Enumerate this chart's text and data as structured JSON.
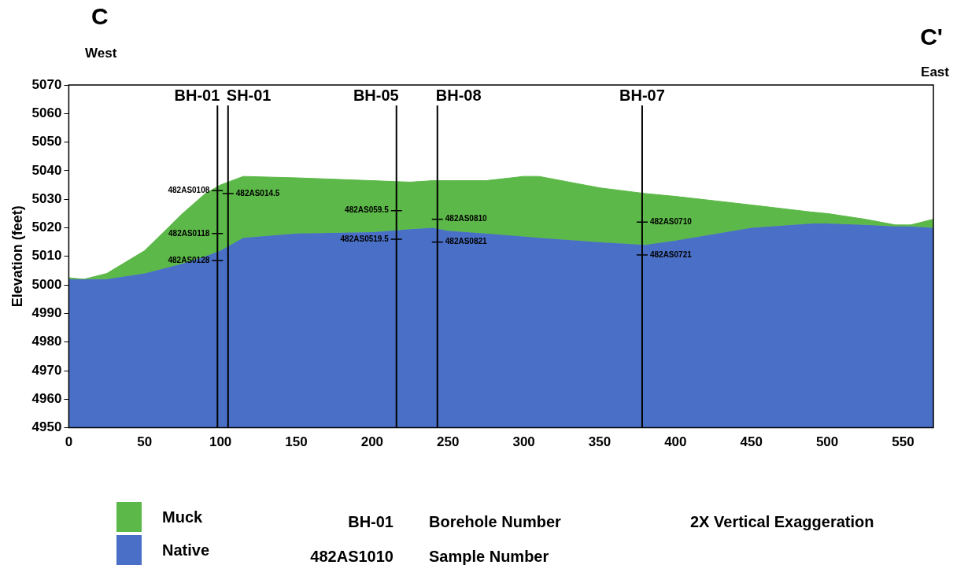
{
  "chart_data": {
    "type": "area",
    "ylabel": "Elevation (feet)",
    "x": [
      0,
      10,
      25,
      50,
      75,
      90,
      100,
      115,
      150,
      200,
      225,
      240,
      250,
      275,
      300,
      310,
      350,
      380,
      400,
      450,
      490,
      500,
      525,
      545,
      555,
      570
    ],
    "series": [
      {
        "name": "Muck",
        "color": "#5cb848",
        "values": [
          5002.5,
          5002,
          5004,
          5012,
          5025,
          5032,
          5035,
          5038,
          5037.5,
          5036.5,
          5036,
          5036.5,
          5036.5,
          5036.5,
          5038,
          5038,
          5034,
          5032,
          5031,
          5028,
          5025.5,
          5025,
          5023,
          5021,
          5021,
          5023
        ]
      },
      {
        "name": "Native",
        "color": "#4a6fc6",
        "values": [
          5002,
          5002,
          5002,
          5004,
          5007.5,
          5010,
          5012,
          5016.5,
          5018,
          5018.5,
          5019.5,
          5020,
          5019,
          5018,
          5017,
          5016.5,
          5015,
          5014,
          5015.5,
          5020,
          5021.5,
          5021.5,
          5021,
          5020.5,
          5020.5,
          5020
        ]
      }
    ],
    "xlim": [
      0,
      570
    ],
    "xticks": [
      0,
      50,
      100,
      150,
      200,
      250,
      300,
      350,
      400,
      450,
      500,
      550
    ],
    "ylim": [
      4950,
      5070
    ],
    "yticks": [
      4950,
      4960,
      4970,
      4980,
      4990,
      5000,
      5010,
      5020,
      5030,
      5040,
      5050,
      5060,
      5070
    ],
    "grid": false,
    "legend": "bottom left",
    "ref_lines": [
      {
        "axis": "x",
        "value": 98,
        "label": "BH-01"
      },
      {
        "axis": "x",
        "value": 105,
        "label": "SH-01"
      },
      {
        "axis": "x",
        "value": 216,
        "label": "BH-05"
      },
      {
        "axis": "x",
        "value": 243,
        "label": "BH-08"
      },
      {
        "axis": "x",
        "value": 378,
        "label": "BH-07"
      }
    ],
    "annotations": [
      "C",
      "West",
      "C'",
      "East",
      "BH-01",
      "Borehole Number",
      "482AS1010",
      "Sample Number",
      "2X Vertical Exaggeration",
      {
        "text": "482AS0108",
        "x": 98,
        "y": 5033
      },
      {
        "text": "482AS014.5",
        "x": 105,
        "y": 5032
      },
      {
        "text": "482AS0118",
        "x": 98,
        "y": 5018
      },
      {
        "text": "482AS0128",
        "x": 98,
        "y": 5008.5
      },
      {
        "text": "482AS059.5",
        "x": 216,
        "y": 5026
      },
      {
        "text": "482AS0519.5",
        "x": 216,
        "y": 5016
      },
      {
        "text": "482AS0810",
        "x": 243,
        "y": 5023
      },
      {
        "text": "482AS0821",
        "x": 243,
        "y": 5015
      },
      {
        "text": "482AS0710",
        "x": 378,
        "y": 5022
      },
      {
        "text": "482AS0721",
        "x": 378,
        "y": 5010.5
      }
    ]
  }
}
